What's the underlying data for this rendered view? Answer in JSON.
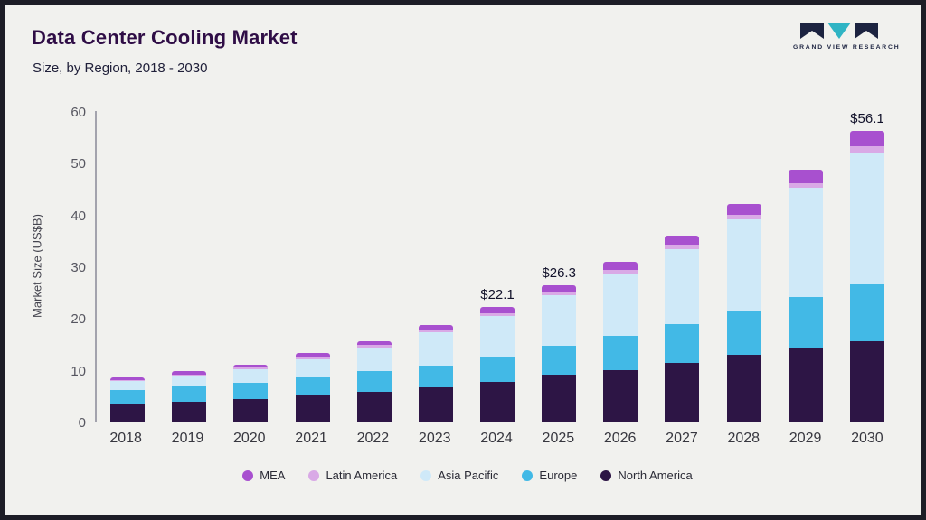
{
  "header": {
    "title": "Data Center Cooling Market",
    "subtitle": "Size, by Region, 2018 - 2030",
    "logo_text": "GRAND VIEW RESEARCH"
  },
  "chart_data": {
    "type": "bar",
    "stacked": true,
    "title": "Data Center Cooling Market Size, by Region, 2018 - 2030",
    "xlabel": "",
    "ylabel": "Market Size (US$B)",
    "ylim": [
      0,
      60
    ],
    "yticks": [
      0,
      10,
      20,
      30,
      40,
      50,
      60
    ],
    "grid": false,
    "legend_position": "bottom",
    "categories": [
      "2018",
      "2019",
      "2020",
      "2021",
      "2022",
      "2023",
      "2024",
      "2025",
      "2026",
      "2027",
      "2028",
      "2029",
      "2030"
    ],
    "series": [
      {
        "name": "North America",
        "color": "#2d1545",
        "values": [
          3.5,
          3.9,
          4.4,
          5.0,
          5.8,
          6.6,
          7.7,
          9.0,
          10.0,
          11.3,
          12.9,
          14.3,
          15.6
        ]
      },
      {
        "name": "Europe",
        "color": "#42b9e6",
        "values": [
          2.6,
          2.9,
          3.2,
          3.6,
          4.0,
          4.3,
          4.9,
          5.7,
          6.5,
          7.6,
          8.5,
          9.8,
          11.0
        ]
      },
      {
        "name": "Asia Pacific",
        "color": "#cfe9f8",
        "values": [
          1.8,
          2.1,
          2.55,
          3.5,
          4.55,
          6.35,
          7.9,
          9.7,
          12.1,
          14.5,
          17.6,
          21.0,
          25.4
        ]
      },
      {
        "name": "Latin America",
        "color": "#d9a9e6",
        "values": [
          0.2,
          0.25,
          0.3,
          0.35,
          0.4,
          0.45,
          0.5,
          0.6,
          0.7,
          0.8,
          0.9,
          1.0,
          1.2
        ]
      },
      {
        "name": "MEA",
        "color": "#a850cf",
        "values": [
          0.5,
          0.55,
          0.65,
          0.75,
          0.85,
          1.0,
          1.1,
          1.3,
          1.5,
          1.8,
          2.1,
          2.5,
          2.9
        ]
      }
    ],
    "annotations": [
      {
        "category": "2024",
        "text": "$22.1"
      },
      {
        "category": "2025",
        "text": "$26.3"
      },
      {
        "category": "2030",
        "text": "$56.1"
      }
    ],
    "legend": [
      "MEA",
      "Latin America",
      "Asia Pacific",
      "Europe",
      "North America"
    ]
  },
  "colors": {
    "background": "#f1f1ee",
    "frame_border": "#1d1d26",
    "title": "#2f0d46",
    "axis_text": "#55555f",
    "logo_dark": "#1c2340",
    "logo_teal": "#2fb4c4"
  }
}
